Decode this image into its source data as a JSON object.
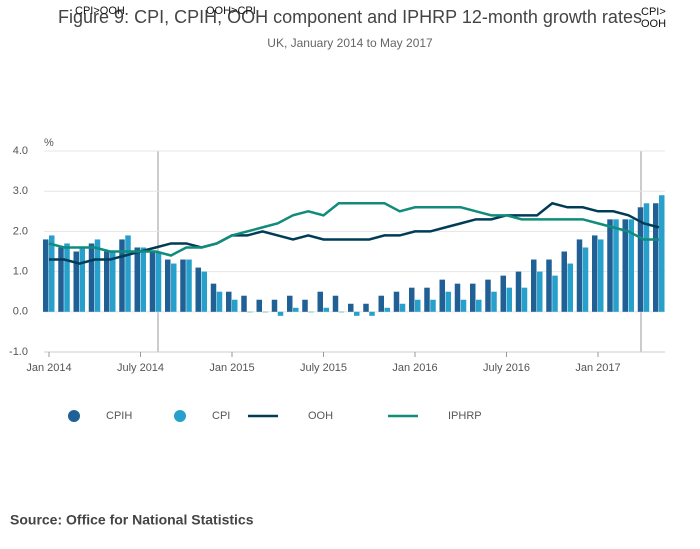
{
  "chart_data": {
    "type": "bar-line",
    "title": "Figure 9: CPI, CPIH, OOH component and IPHRP 12-month growth rates",
    "subtitle": "UK, January 2014 to May 2017",
    "y_label": "%",
    "source": "Source: Office for National Statistics",
    "annotations": [
      "CPI>OOH",
      "OOH>CPI",
      "CPI> OOH"
    ],
    "categories": [
      "Jan 2014",
      null,
      null,
      null,
      null,
      null,
      "July 2014",
      null,
      null,
      null,
      null,
      null,
      "Jan 2015",
      null,
      null,
      null,
      null,
      null,
      "July 2015",
      null,
      null,
      null,
      null,
      null,
      "Jan 2016",
      null,
      null,
      null,
      null,
      null,
      "July 2016",
      null,
      null,
      null,
      null,
      null,
      "Jan 2017",
      null,
      null,
      null,
      null
    ],
    "series": [
      {
        "name": "CPIH",
        "kind": "bar",
        "color": "#206095",
        "values": [
          1.8,
          1.6,
          1.5,
          1.7,
          1.5,
          1.8,
          1.6,
          1.5,
          1.3,
          1.3,
          1.1,
          0.7,
          0.5,
          0.4,
          0.3,
          0.3,
          0.4,
          0.3,
          0.5,
          0.4,
          0.2,
          0.2,
          0.4,
          0.5,
          0.6,
          0.6,
          0.8,
          0.7,
          0.7,
          0.8,
          0.9,
          1.0,
          1.3,
          1.3,
          1.5,
          1.8,
          1.9,
          2.3,
          2.3,
          2.6,
          2.7
        ]
      },
      {
        "name": "CPI",
        "kind": "bar",
        "color": "#27a0cc",
        "values": [
          1.9,
          1.7,
          1.6,
          1.8,
          1.5,
          1.9,
          1.6,
          1.5,
          1.2,
          1.3,
          1.0,
          0.5,
          0.3,
          0.0,
          0.0,
          -0.1,
          0.1,
          0.0,
          0.1,
          0.0,
          -0.1,
          -0.1,
          0.1,
          0.2,
          0.3,
          0.3,
          0.5,
          0.3,
          0.3,
          0.5,
          0.6,
          0.6,
          1.0,
          0.9,
          1.2,
          1.6,
          1.8,
          2.3,
          2.3,
          2.7,
          2.9
        ]
      },
      {
        "name": "OOH",
        "kind": "line",
        "color": "#003c57",
        "values": [
          1.3,
          1.3,
          1.2,
          1.3,
          1.3,
          1.4,
          1.5,
          1.6,
          1.7,
          1.7,
          1.6,
          1.7,
          1.9,
          1.9,
          2.0,
          1.9,
          1.8,
          1.9,
          1.8,
          1.8,
          1.8,
          1.8,
          1.9,
          1.9,
          2.0,
          2.0,
          2.1,
          2.2,
          2.3,
          2.3,
          2.4,
          2.4,
          2.4,
          2.7,
          2.6,
          2.6,
          2.5,
          2.5,
          2.4,
          2.2,
          2.1
        ]
      },
      {
        "name": "IPHRP",
        "kind": "line",
        "color": "#118c7b",
        "values": [
          1.7,
          1.6,
          1.6,
          1.6,
          1.5,
          1.5,
          1.5,
          1.5,
          1.4,
          1.6,
          1.6,
          1.7,
          1.9,
          2.0,
          2.1,
          2.2,
          2.4,
          2.5,
          2.4,
          2.7,
          2.7,
          2.7,
          2.7,
          2.5,
          2.6,
          2.6,
          2.6,
          2.6,
          2.5,
          2.4,
          2.4,
          2.3,
          2.3,
          2.3,
          2.3,
          2.3,
          2.2,
          2.1,
          2.0,
          1.8,
          1.8
        ]
      }
    ],
    "ylim": [
      -1.0,
      4.0
    ],
    "yticks": [
      {
        "value": -1,
        "label": "-1.0"
      },
      {
        "value": 0,
        "label": "0.0"
      },
      {
        "value": 1,
        "label": "1.0"
      },
      {
        "value": 2,
        "label": "2.0"
      },
      {
        "value": 3,
        "label": "3.0"
      },
      {
        "value": 4,
        "label": "4.0"
      }
    ],
    "grid": true
  }
}
